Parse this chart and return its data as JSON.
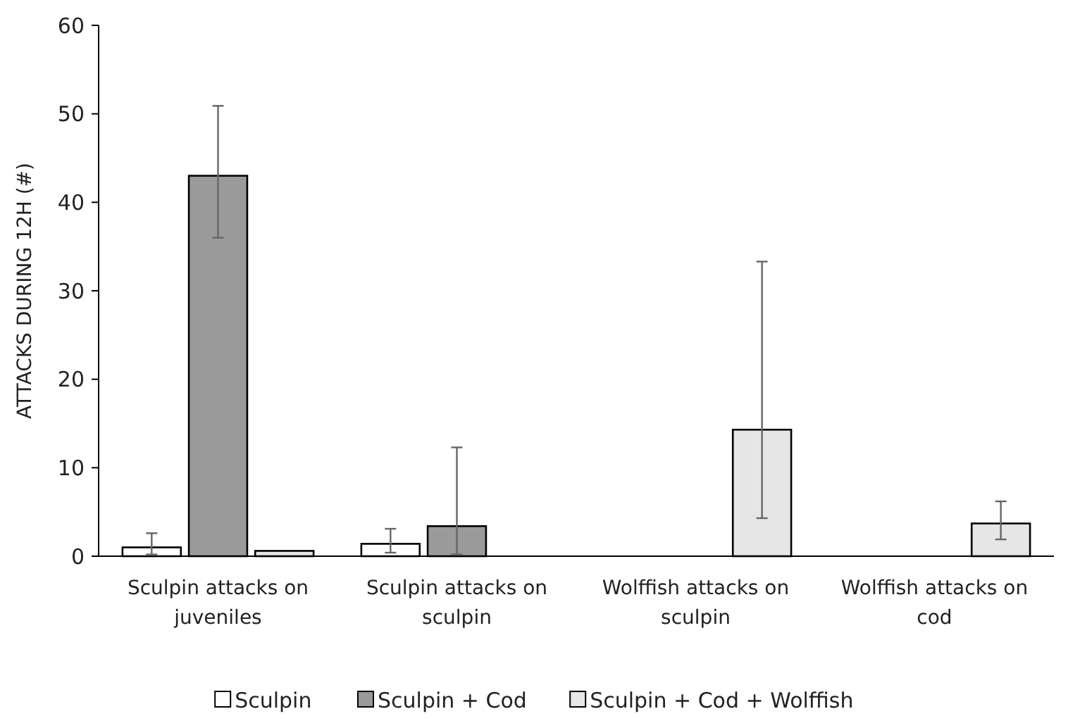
{
  "chart_data": {
    "type": "bar",
    "ylabel": "ATTACKS DURING 12H (#)",
    "categories": [
      "Sculpin attacks on juveniles",
      "Sculpin attacks on sculpin",
      "Wolffish attacks on sculpin",
      "Wolffish attacks on cod"
    ],
    "series": [
      {
        "name": "Sculpin",
        "color": "#ffffff",
        "values": [
          1.0,
          1.4,
          null,
          null
        ],
        "errors": [
          [
            0.2,
            2.6
          ],
          [
            0.4,
            3.1
          ],
          null,
          null
        ]
      },
      {
        "name": "Sculpin + Cod",
        "color": "#9a9a9a",
        "values": [
          43,
          3.4,
          null,
          null
        ],
        "errors": [
          [
            36,
            50.9
          ],
          [
            0.2,
            12.3
          ],
          null,
          null
        ]
      },
      {
        "name": "Sculpin + Cod + Wolffish",
        "color": "#e6e6e6",
        "values": [
          0.6,
          null,
          14.3,
          3.7
        ],
        "errors": [
          null,
          null,
          [
            4.3,
            33.3
          ],
          [
            1.9,
            6.2
          ]
        ]
      }
    ],
    "ylim": [
      0,
      60
    ],
    "yticks": [
      0,
      10,
      20,
      30,
      40,
      50,
      60
    ],
    "grid": false,
    "legend": "bottom"
  }
}
